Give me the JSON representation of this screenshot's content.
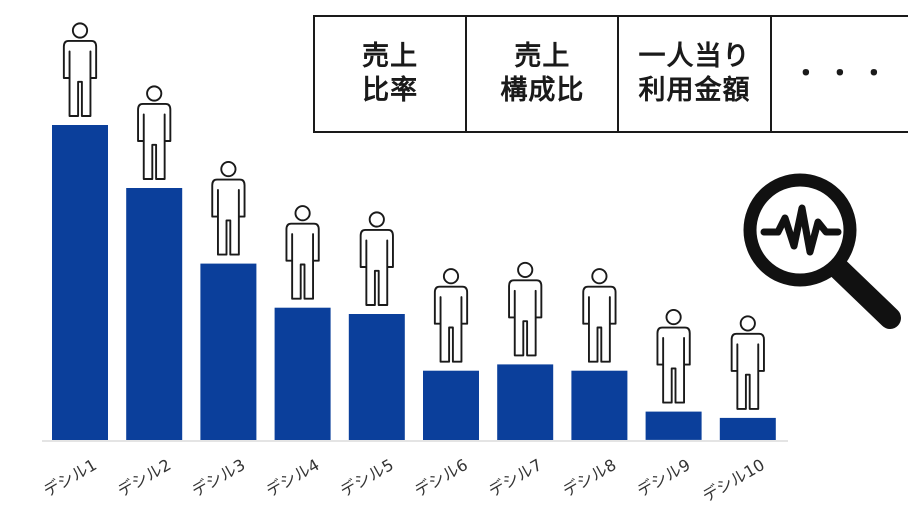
{
  "table": {
    "columns": [
      "売上\n比率",
      "売上\n構成比",
      "一人当り\n利用金額",
      "・・・"
    ]
  },
  "colors": {
    "bar": "#0b3f9b",
    "axis": "#e4e4e4",
    "outline": "#1a1a1a",
    "label": "#333333"
  },
  "icons": [
    "person-icon",
    "magnifier-analysis-icon"
  ],
  "chart_data": {
    "type": "bar",
    "categories": [
      "デシル1",
      "デシル2",
      "デシル3",
      "デシル4",
      "デシル5",
      "デシル6",
      "デシル7",
      "デシル8",
      "デシル9",
      "デシル10"
    ],
    "values": [
      100,
      80,
      56,
      42,
      40,
      22,
      24,
      22,
      9,
      7
    ],
    "ylim": [
      0,
      100
    ],
    "grid": false,
    "legend": "none"
  }
}
